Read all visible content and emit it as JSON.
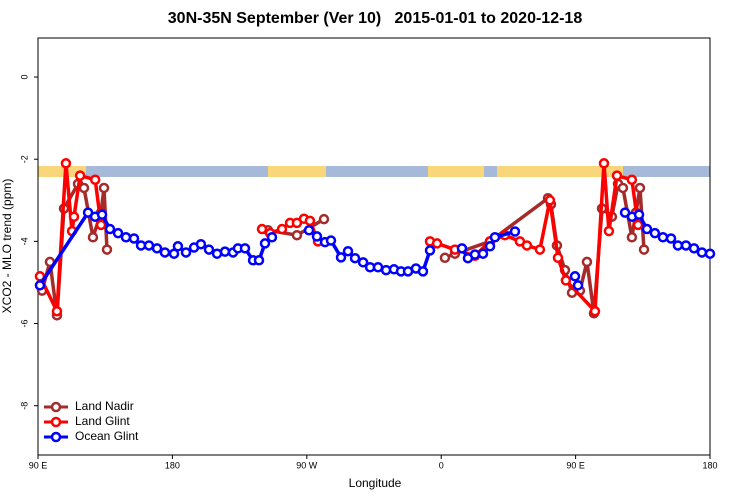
{
  "chart_data": {
    "type": "line",
    "title": "30N-35N September (Ver 10)   2015-01-01 to 2020-12-18",
    "xlabel": "Longitude",
    "ylabel": "XCO2 - MLO trend (ppm)",
    "xlim": [
      90,
      540
    ],
    "ylim": [
      -9.2,
      0.95
    ],
    "xticks": [
      {
        "value": 90,
        "label": "90 E"
      },
      {
        "value": 180,
        "label": "180"
      },
      {
        "value": 270,
        "label": "90 W"
      },
      {
        "value": 360,
        "label": "0"
      },
      {
        "value": 450,
        "label": "90 E"
      },
      {
        "value": 540,
        "label": "180"
      }
    ],
    "yticks": [
      0,
      -2,
      -4,
      -6,
      -8
    ],
    "legend": "bottom-left",
    "series": [
      {
        "name": "Land Nadir",
        "color": "#a52a2a",
        "x": [
          92.7,
          98,
          102.7,
          107.4,
          116.8,
          120.8,
          126.8,
          132.2,
          134.2,
          136.2,
          null,
          244,
          263.4,
          281.5,
          null,
          362.5,
          369.2,
          392.7,
          431.5,
          433.5,
          437.5,
          442.9,
          447.6,
          452.9,
          457.6,
          462.3,
          467.7,
          474.3,
          478.4,
          481.7,
          487.7,
          490.4,
          493.1,
          495.8
        ],
        "values": [
          -5.2,
          -4.5,
          -5.8,
          -3.2,
          -2.6,
          -2.7,
          -3.9,
          -3.3,
          -2.7,
          -4.2,
          null,
          -3.73,
          -3.85,
          -3.46,
          null,
          -4.4,
          -4.3,
          -4.0,
          -2.95,
          -3.1,
          -4.1,
          -4.7,
          -5.25,
          -5.2,
          -4.5,
          -5.75,
          -3.2,
          -3.4,
          -2.6,
          -2.7,
          -3.9,
          -3.3,
          -2.7,
          -4.2
        ]
      },
      {
        "name": "Land Glint",
        "color": "#ff0000",
        "x": [
          91.3,
          102.7,
          108.7,
          112.8,
          114.1,
          118.2,
          128.3,
          132.2,
          null,
          240,
          245.4,
          253.4,
          258.8,
          263.4,
          268.1,
          272.1,
          277.5,
          null,
          352.5,
          357.2,
          369.2,
          382.6,
          392.7,
          402.7,
          412.7,
          417.4,
          426.1,
          432.8,
          438.2,
          443.5,
          463,
          469,
          472.3,
          477.7,
          487.7,
          491.8
        ],
        "values": [
          -4.85,
          -5.7,
          -2.1,
          -3.75,
          -3.4,
          -2.4,
          -2.5,
          -3.6,
          null,
          -3.7,
          -3.8,
          -3.7,
          -3.55,
          -3.55,
          -3.45,
          -3.5,
          -4.0,
          null,
          -4.0,
          -4.05,
          -4.2,
          -4.35,
          -4.0,
          -3.85,
          -4.0,
          -4.1,
          -4.2,
          -3.0,
          -4.4,
          -4.95,
          -5.7,
          -2.1,
          -3.75,
          -2.4,
          -2.5,
          -3.6
        ]
      },
      {
        "name": "Ocean Glint",
        "color": "#0000ff",
        "x": [
          91.3,
          123.5,
          128.2,
          132.9,
          138.2,
          143.6,
          148.9,
          154.3,
          159,
          164.3,
          169.7,
          175,
          181.1,
          183.7,
          189.1,
          194.5,
          199.1,
          204.5,
          209.9,
          215.2,
          220.6,
          223.9,
          228.6,
          234,
          238,
          242,
          246.7,
          null,
          271.5,
          276.8,
          282.2,
          286.2,
          292.9,
          297.6,
          302.3,
          307.7,
          312.4,
          317.7,
          323.1,
          328.4,
          333.1,
          337.8,
          343.1,
          347.8,
          352.5,
          null,
          373.9,
          377.9,
          382.6,
          388,
          392.7,
          396,
          409.4,
          null,
          449.6,
          451.6,
          null,
          483.1,
          487.8,
          492.5,
          497.8,
          503.1,
          508.5,
          513.9,
          518.5,
          523.9,
          529.3,
          534.6,
          540
        ],
        "values": [
          -5.07,
          -3.3,
          -3.4,
          -3.35,
          -3.7,
          -3.8,
          -3.9,
          -3.93,
          -4.1,
          -4.1,
          -4.17,
          -4.27,
          -4.3,
          -4.12,
          -4.27,
          -4.15,
          -4.07,
          -4.2,
          -4.3,
          -4.25,
          -4.27,
          -4.17,
          -4.17,
          -4.46,
          -4.46,
          -4.05,
          -3.9,
          null,
          -3.73,
          -3.88,
          -4.02,
          -3.98,
          -4.39,
          -4.24,
          -4.41,
          -4.51,
          -4.63,
          -4.63,
          -4.7,
          -4.68,
          -4.73,
          -4.73,
          -4.66,
          -4.73,
          -4.22,
          null,
          -4.17,
          -4.41,
          -4.32,
          -4.3,
          -4.12,
          -3.9,
          -3.76,
          null,
          -4.85,
          -5.07,
          null,
          -3.3,
          -3.4,
          -3.35,
          -3.7,
          -3.8,
          -3.9,
          -3.93,
          -4.1,
          -4.1,
          -4.17,
          -4.27,
          -4.3
        ]
      }
    ]
  }
}
